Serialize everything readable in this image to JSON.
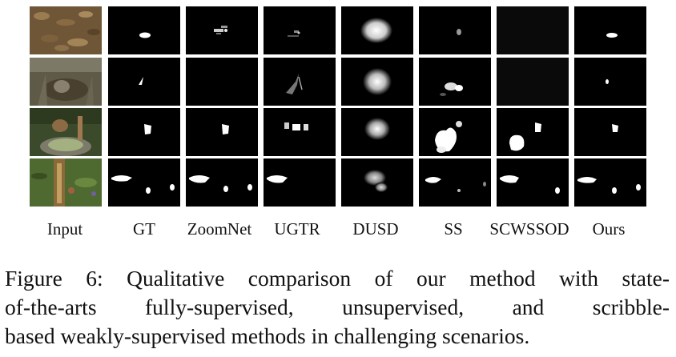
{
  "figure": {
    "columns": [
      "Input",
      "GT",
      "ZoomNet",
      "UGTR",
      "DUSD",
      "SS",
      "SCWSSOD",
      "Ours"
    ],
    "rows": 4,
    "caption_lines": [
      "Figure 6: Qualitative comparison of our method with state-",
      "of-the-arts fully-supervised, unsupervised, and scribble-",
      "based weakly-supervised methods in challenging scenarios."
    ]
  }
}
